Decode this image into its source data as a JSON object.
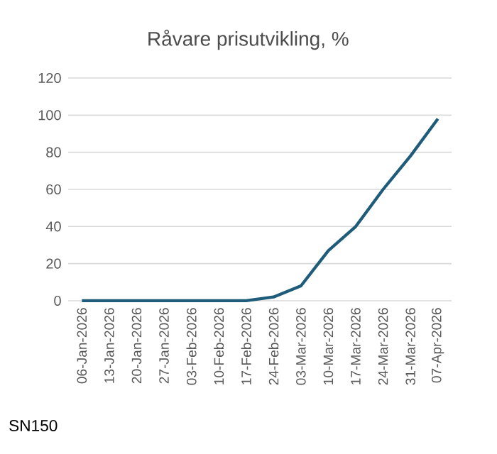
{
  "chart_data": {
    "type": "line",
    "title": "Råvare prisutvikling, %",
    "categories": [
      "06-Jan-2026",
      "13-Jan-2026",
      "20-Jan-2026",
      "27-Jan-2026",
      "03-Feb-2026",
      "10-Feb-2026",
      "17-Feb-2026",
      "24-Feb-2026",
      "03-Mar-2026",
      "10-Mar-2026",
      "17-Mar-2026",
      "24-Mar-2026",
      "31-Mar-2026",
      "07-Apr-2026"
    ],
    "values": [
      0,
      0,
      0,
      0,
      0,
      0,
      0,
      2,
      8,
      27,
      40,
      60,
      78,
      98
    ],
    "color": "#1f5c7a",
    "ylim": [
      0,
      120
    ],
    "yticks": [
      0,
      20,
      40,
      60,
      80,
      100,
      120
    ],
    "grid": "y",
    "marker": "none",
    "line_style": "solid",
    "annotations": [
      "SN150"
    ]
  }
}
